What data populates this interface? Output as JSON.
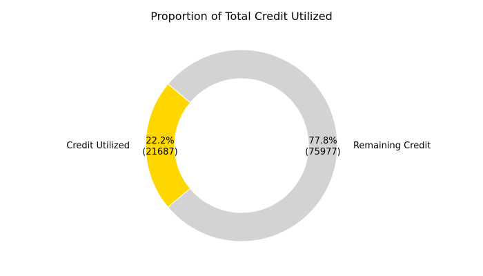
{
  "chart_data": {
    "type": "pie",
    "style": "donut",
    "title": "Proportion of Total Credit Utilized",
    "slices": [
      {
        "label": "Credit Utilized",
        "value": 21687,
        "percent_label": "22.2%",
        "value_label": "(21687)",
        "color": "#FFD700"
      },
      {
        "label": "Remaining Credit",
        "value": 75977,
        "percent_label": "77.8%",
        "value_label": "(75977)",
        "color": "#D3D3D3"
      }
    ],
    "start_angle_deg": 140,
    "direction": "counterclockwise",
    "legend": "none"
  }
}
